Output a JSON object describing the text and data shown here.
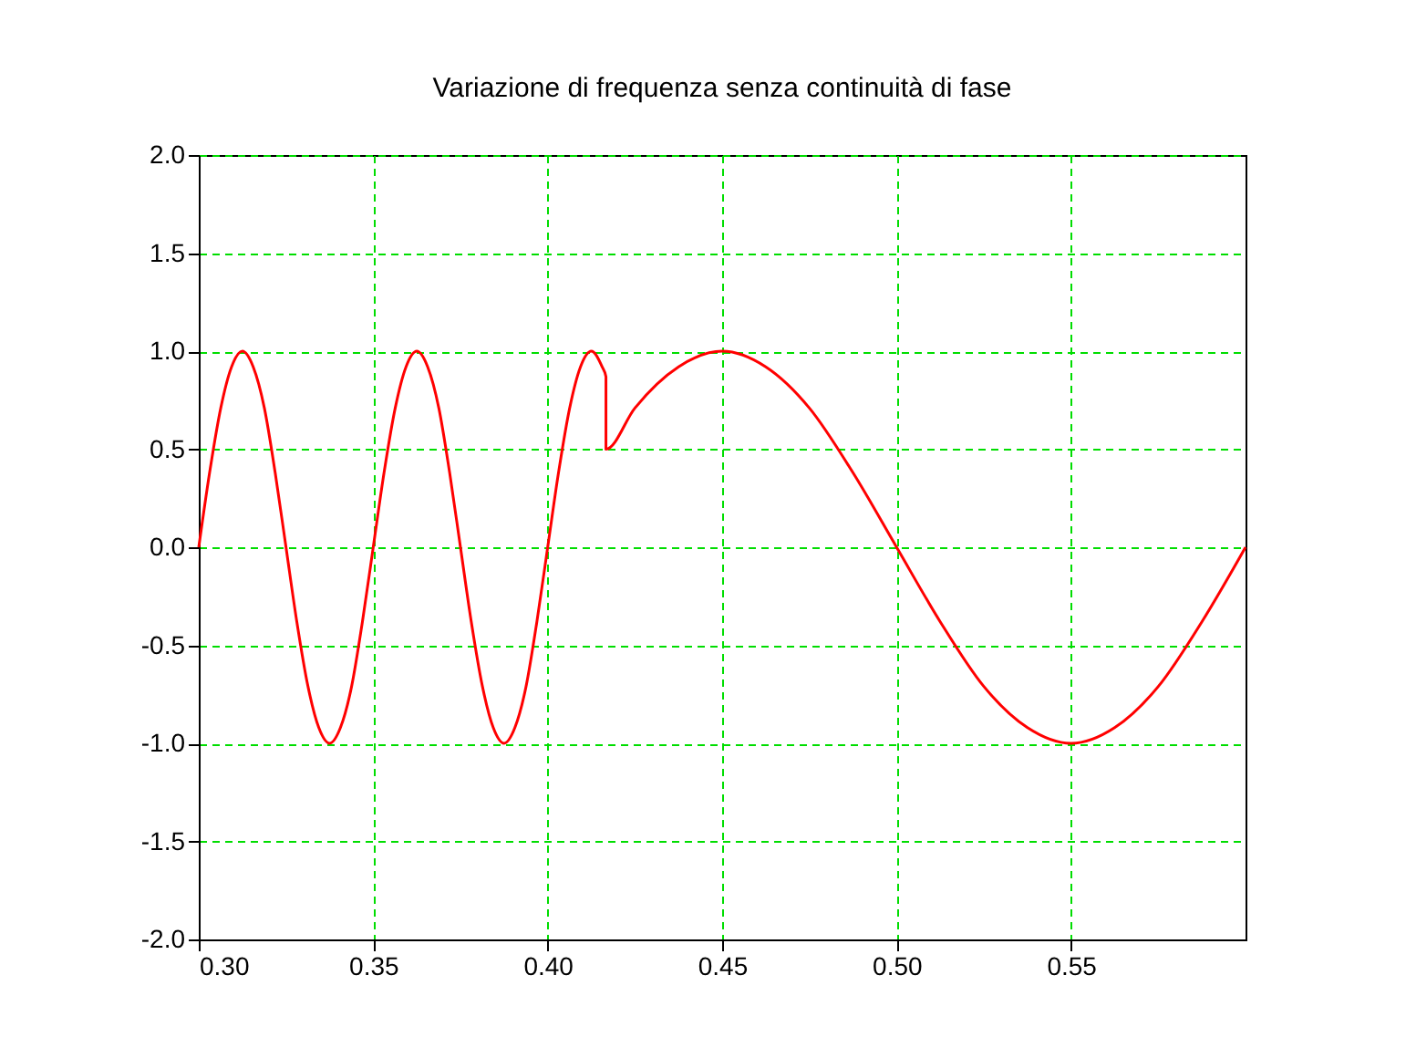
{
  "chart_data": {
    "type": "line",
    "title": "Variazione di frequenza senza continuità di fase",
    "x": [
      0.3,
      0.3031,
      0.3063,
      0.3094,
      0.3125,
      0.3156,
      0.3188,
      0.3219,
      0.325,
      0.3281,
      0.3313,
      0.3344,
      0.3375,
      0.3406,
      0.3438,
      0.3469,
      0.35,
      0.3531,
      0.3563,
      0.3594,
      0.3625,
      0.3656,
      0.3688,
      0.3719,
      0.375,
      0.3781,
      0.3813,
      0.3844,
      0.3875,
      0.3906,
      0.3938,
      0.3969,
      0.4,
      0.4031,
      0.4063,
      0.4094,
      0.4125,
      0.4156,
      0.4167,
      0.4167,
      0.425,
      0.4375,
      0.45,
      0.4625,
      0.475,
      0.4875,
      0.5,
      0.5125,
      0.525,
      0.5375,
      0.55,
      0.5625,
      0.575,
      0.5875,
      0.6
    ],
    "series": [
      {
        "color": "#ff0000",
        "values": [
          0,
          0.38,
          0.71,
          0.92,
          1,
          0.92,
          0.71,
          0.38,
          0,
          -0.38,
          -0.71,
          -0.92,
          -1,
          -0.92,
          -0.71,
          -0.38,
          0,
          0.38,
          0.71,
          0.92,
          1,
          0.92,
          0.71,
          0.38,
          0,
          -0.38,
          -0.71,
          -0.92,
          -1,
          -0.92,
          -0.71,
          -0.38,
          0,
          0.38,
          0.71,
          0.92,
          1,
          0.92,
          0.87,
          0.5,
          0.71,
          0.92,
          1,
          0.92,
          0.71,
          0.38,
          0,
          -0.38,
          -0.71,
          -0.92,
          -1,
          -0.92,
          -0.71,
          -0.38,
          0
        ]
      }
    ],
    "xlim": [
      0.3,
      0.6
    ],
    "xticks": [
      {
        "value": 0.3,
        "label": "0.30"
      },
      {
        "value": 0.35,
        "label": "0.35"
      },
      {
        "value": 0.4,
        "label": "0.40"
      },
      {
        "value": 0.45,
        "label": "0.45"
      },
      {
        "value": 0.5,
        "label": "0.50"
      },
      {
        "value": 0.55,
        "label": "0.55"
      }
    ],
    "ylim": [
      -2,
      2
    ],
    "yticks": [
      {
        "value": -2,
        "label": "-2.0"
      },
      {
        "value": -1.5,
        "label": "-1.5"
      },
      {
        "value": -1,
        "label": "-1.0"
      },
      {
        "value": -0.5,
        "label": "-0.5"
      },
      {
        "value": 0,
        "label": "0.0"
      },
      {
        "value": 0.5,
        "label": "0.5"
      },
      {
        "value": 1,
        "label": "1.0"
      },
      {
        "value": 1.5,
        "label": "1.5"
      },
      {
        "value": 2,
        "label": "2.0"
      }
    ],
    "grid": true
  }
}
